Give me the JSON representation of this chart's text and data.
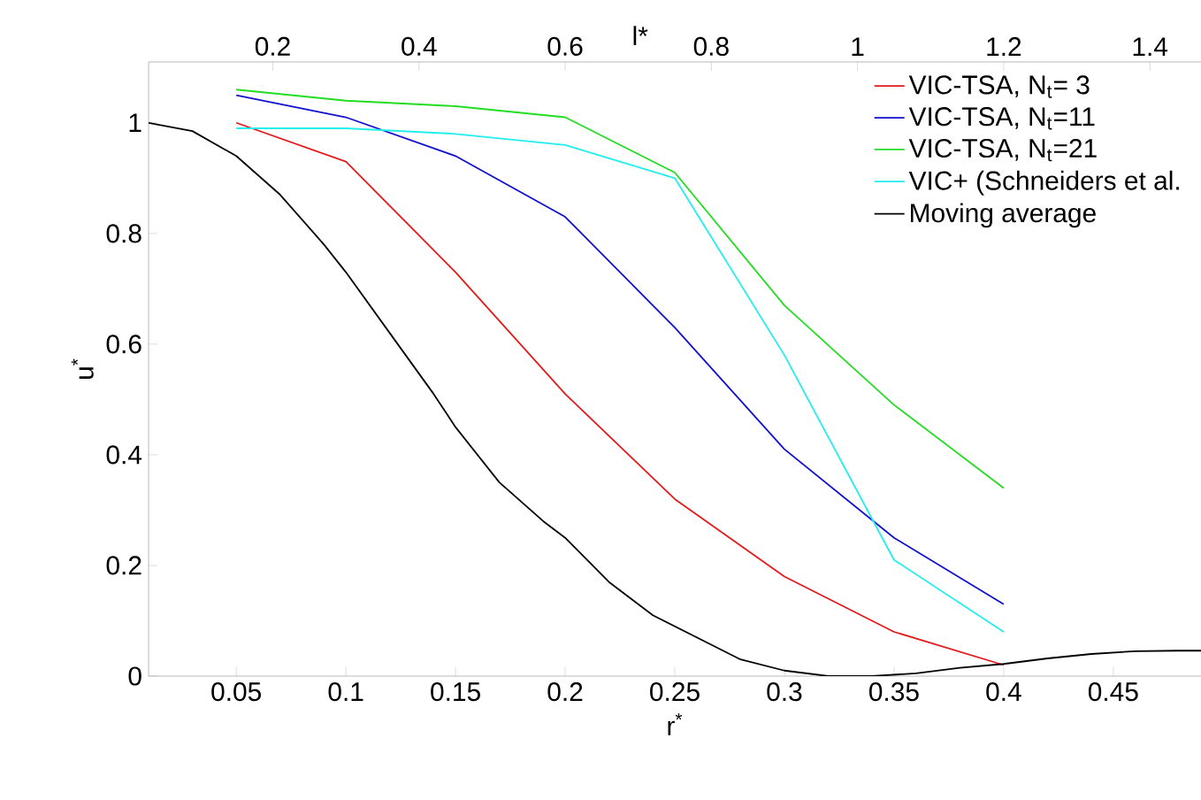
{
  "chart_data": {
    "type": "line",
    "xlabel": "r$^{*}$",
    "ylabel": "u$^{*}$",
    "x2label": "l*",
    "xlim": [
      0.01,
      0.49
    ],
    "xticks": [
      0.05,
      0.1,
      0.15,
      0.2,
      0.25,
      0.3,
      0.35,
      0.4,
      0.45
    ],
    "x2lim": [
      0.03,
      1.47
    ],
    "x2ticks": [
      0.2,
      0.4,
      0.6,
      0.8,
      1,
      1.2,
      1.4
    ],
    "ylim": [
      0,
      1.11
    ],
    "yticks": [
      0,
      0.2,
      0.4,
      0.6,
      0.8,
      1
    ],
    "grid": false,
    "legend": "top right",
    "marker": "none",
    "line_style": "solid",
    "series": [
      {
        "name": "VIC-TSA, N$_{t}$= 3",
        "color": "#e31a1c",
        "x": [
          0.05,
          0.1,
          0.15,
          0.2,
          0.25,
          0.3,
          0.35,
          0.4
        ],
        "values": [
          1.0,
          0.93,
          0.73,
          0.51,
          0.32,
          0.18,
          0.08,
          0.02
        ]
      },
      {
        "name": "VIC-TSA, N$_{t}$=11",
        "color": "#1010d0",
        "x": [
          0.05,
          0.1,
          0.15,
          0.2,
          0.25,
          0.3,
          0.35,
          0.4
        ],
        "values": [
          1.05,
          1.01,
          0.94,
          0.83,
          0.63,
          0.41,
          0.25,
          0.13
        ]
      },
      {
        "name": "VIC-TSA, N$_{t}$=21",
        "color": "#22dd22",
        "x": [
          0.05,
          0.1,
          0.15,
          0.2,
          0.25,
          0.3,
          0.35,
          0.4
        ],
        "values": [
          1.06,
          1.04,
          1.03,
          1.01,
          0.91,
          0.67,
          0.49,
          0.34
        ]
      },
      {
        "name": "VIC+ (Schneiders et al.",
        "color": "#22eeee",
        "x": [
          0.05,
          0.1,
          0.15,
          0.2,
          0.25,
          0.3,
          0.35,
          0.4
        ],
        "values": [
          0.99,
          0.99,
          0.98,
          0.96,
          0.9,
          0.58,
          0.21,
          0.08
        ]
      },
      {
        "name": "Moving average",
        "color": "#000000",
        "x": [
          0.01,
          0.03,
          0.05,
          0.07,
          0.09,
          0.1,
          0.12,
          0.14,
          0.15,
          0.17,
          0.19,
          0.2,
          0.22,
          0.24,
          0.26,
          0.28,
          0.3,
          0.32,
          0.34,
          0.36,
          0.38,
          0.4,
          0.42,
          0.44,
          0.46,
          0.48,
          0.49
        ],
        "values": [
          1.0,
          0.985,
          0.94,
          0.87,
          0.78,
          0.73,
          0.62,
          0.51,
          0.45,
          0.35,
          0.28,
          0.25,
          0.17,
          0.11,
          0.07,
          0.03,
          0.01,
          0.0,
          0.0,
          0.005,
          0.015,
          0.022,
          0.032,
          0.04,
          0.045,
          0.046,
          0.046
        ]
      }
    ]
  }
}
